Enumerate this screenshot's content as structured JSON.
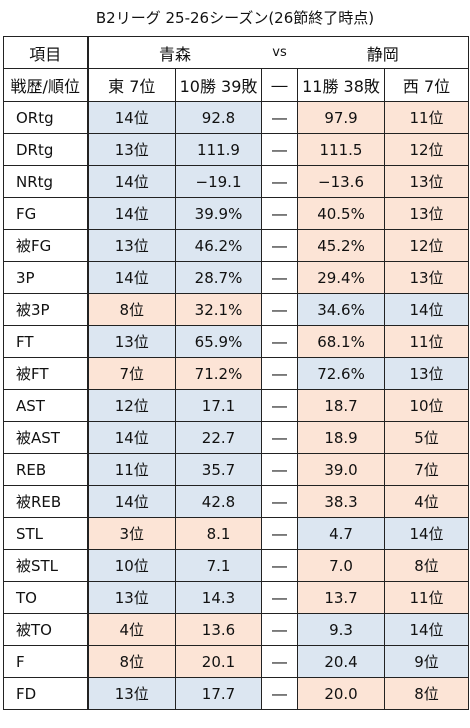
{
  "title": "B2リーグ 25-26シーズン(26節終了時点)",
  "header": {
    "label": "項目",
    "team_left": "青森",
    "vs": "vs",
    "team_right": "静岡"
  },
  "subheader": {
    "label": "戦歴/順位",
    "left_rank": "東 7位",
    "left_record": "10勝 39敗",
    "sep": "―",
    "right_record": "11勝 38敗",
    "right_rank": "西 7位"
  },
  "colors": {
    "better": "#dce6f1",
    "worse": "#fce4d6"
  },
  "rows": [
    {
      "label": "ORtg",
      "left_rank": "14位",
      "left_value": "92.8",
      "sep": "―",
      "right_value": "97.9",
      "right_rank": "11位",
      "left_color": "blue",
      "right_color": "peach"
    },
    {
      "label": "DRtg",
      "left_rank": "13位",
      "left_value": "111.9",
      "sep": "―",
      "right_value": "111.5",
      "right_rank": "12位",
      "left_color": "blue",
      "right_color": "peach"
    },
    {
      "label": "NRtg",
      "left_rank": "14位",
      "left_value": "−19.1",
      "sep": "―",
      "right_value": "−13.6",
      "right_rank": "13位",
      "left_color": "blue",
      "right_color": "peach"
    },
    {
      "label": "FG",
      "left_rank": "14位",
      "left_value": "39.9%",
      "sep": "―",
      "right_value": "40.5%",
      "right_rank": "13位",
      "left_color": "blue",
      "right_color": "peach"
    },
    {
      "label": "被FG",
      "left_rank": "13位",
      "left_value": "46.2%",
      "sep": "―",
      "right_value": "45.2%",
      "right_rank": "12位",
      "left_color": "blue",
      "right_color": "peach"
    },
    {
      "label": "3P",
      "left_rank": "14位",
      "left_value": "28.7%",
      "sep": "―",
      "right_value": "29.4%",
      "right_rank": "13位",
      "left_color": "blue",
      "right_color": "peach"
    },
    {
      "label": "被3P",
      "left_rank": "8位",
      "left_value": "32.1%",
      "sep": "―",
      "right_value": "34.6%",
      "right_rank": "14位",
      "left_color": "peach",
      "right_color": "blue"
    },
    {
      "label": "FT",
      "left_rank": "13位",
      "left_value": "65.9%",
      "sep": "―",
      "right_value": "68.1%",
      "right_rank": "11位",
      "left_color": "blue",
      "right_color": "peach"
    },
    {
      "label": "被FT",
      "left_rank": "7位",
      "left_value": "71.2%",
      "sep": "―",
      "right_value": "72.6%",
      "right_rank": "13位",
      "left_color": "peach",
      "right_color": "blue"
    },
    {
      "label": "AST",
      "left_rank": "12位",
      "left_value": "17.1",
      "sep": "―",
      "right_value": "18.7",
      "right_rank": "10位",
      "left_color": "blue",
      "right_color": "peach"
    },
    {
      "label": "被AST",
      "left_rank": "14位",
      "left_value": "22.7",
      "sep": "―",
      "right_value": "18.9",
      "right_rank": "5位",
      "left_color": "blue",
      "right_color": "peach"
    },
    {
      "label": "REB",
      "left_rank": "11位",
      "left_value": "35.7",
      "sep": "―",
      "right_value": "39.0",
      "right_rank": "7位",
      "left_color": "blue",
      "right_color": "peach"
    },
    {
      "label": "被REB",
      "left_rank": "14位",
      "left_value": "42.8",
      "sep": "―",
      "right_value": "38.3",
      "right_rank": "4位",
      "left_color": "blue",
      "right_color": "peach"
    },
    {
      "label": "STL",
      "left_rank": "3位",
      "left_value": "8.1",
      "sep": "―",
      "right_value": "4.7",
      "right_rank": "14位",
      "left_color": "peach",
      "right_color": "blue"
    },
    {
      "label": "被STL",
      "left_rank": "10位",
      "left_value": "7.1",
      "sep": "―",
      "right_value": "7.0",
      "right_rank": "8位",
      "left_color": "blue",
      "right_color": "peach"
    },
    {
      "label": "TO",
      "left_rank": "13位",
      "left_value": "14.3",
      "sep": "―",
      "right_value": "13.7",
      "right_rank": "11位",
      "left_color": "blue",
      "right_color": "peach"
    },
    {
      "label": "被TO",
      "left_rank": "4位",
      "left_value": "13.6",
      "sep": "―",
      "right_value": "9.3",
      "right_rank": "14位",
      "left_color": "peach",
      "right_color": "blue"
    },
    {
      "label": "F",
      "left_rank": "8位",
      "left_value": "20.1",
      "sep": "―",
      "right_value": "20.4",
      "right_rank": "9位",
      "left_color": "peach",
      "right_color": "blue"
    },
    {
      "label": "FD",
      "left_rank": "13位",
      "left_value": "17.7",
      "sep": "―",
      "right_value": "20.0",
      "right_rank": "8位",
      "left_color": "blue",
      "right_color": "peach"
    }
  ]
}
